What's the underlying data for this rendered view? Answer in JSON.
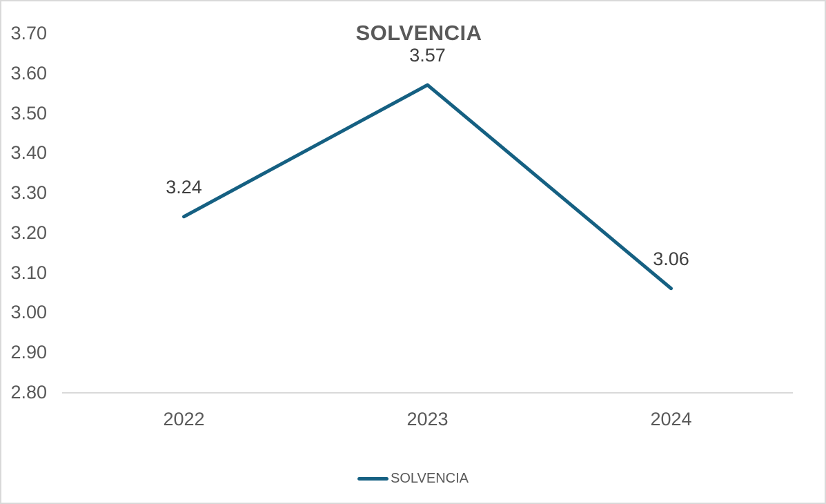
{
  "chart_data": {
    "type": "line",
    "title": "SOLVENCIA",
    "categories": [
      "2022",
      "2023",
      "2024"
    ],
    "series": [
      {
        "name": "SOLVENCIA",
        "values": [
          3.24,
          3.57,
          3.06
        ],
        "color": "#156082"
      }
    ],
    "data_labels": [
      "3.24",
      "3.57",
      "3.06"
    ],
    "y_ticks": [
      "3.70",
      "3.60",
      "3.50",
      "3.40",
      "3.30",
      "3.20",
      "3.10",
      "3.00",
      "2.90",
      "2.80"
    ],
    "ylim": [
      2.8,
      3.7
    ],
    "y_tick_step": 0.1,
    "xlabel": "",
    "ylabel": "",
    "grid": false,
    "legend_position": "bottom",
    "legend_label": "SOLVENCIA",
    "colors": {
      "line": "#156082",
      "title": "#595959",
      "tick": "#595959",
      "data_label": "#404040",
      "axis_line": "#D9D9D9",
      "border": "#D9D9D9",
      "bg": "#FFFFFF"
    }
  }
}
